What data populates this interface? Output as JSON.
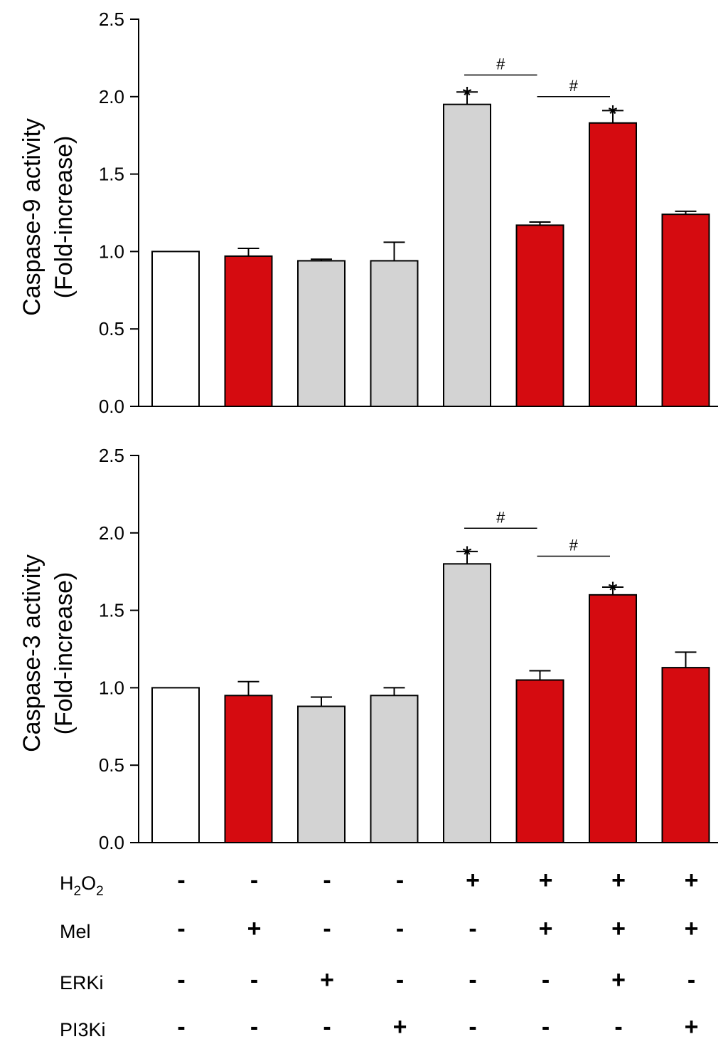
{
  "colors": {
    "ctrl": "#ffffff",
    "gray": "#d3d3d3",
    "red": "#d50b10",
    "axis": "#000000"
  },
  "chart_data": [
    {
      "type": "bar",
      "ylabel_line1": "Caspase-9 activity",
      "ylabel_line2": "(Fold-increase)",
      "ylim": [
        0,
        2.5
      ],
      "yticks": [
        0,
        0.5,
        1.0,
        1.5,
        2.0,
        2.5
      ],
      "ytick_labels": [
        "0.0",
        "0.5",
        "1.0",
        "1.5",
        "2.0",
        "2.5"
      ],
      "values": [
        1.0,
        0.97,
        0.94,
        0.94,
        1.95,
        1.17,
        1.83,
        1.24
      ],
      "errors": [
        0.0,
        0.05,
        0.01,
        0.12,
        0.08,
        0.02,
        0.08,
        0.02
      ],
      "bar_colors": [
        "ctrl",
        "red",
        "gray",
        "gray",
        "gray",
        "red",
        "red",
        "red"
      ],
      "stars": [
        {
          "bar": 4,
          "text": "*"
        },
        {
          "bar": 6,
          "text": "*"
        }
      ],
      "brackets": [
        {
          "from": 4,
          "to": 5,
          "level": 2.14,
          "text": "#"
        },
        {
          "from": 5,
          "to": 6,
          "level": 2.0,
          "text": "#"
        }
      ]
    },
    {
      "type": "bar",
      "ylabel_line1": "Caspase-3 activity",
      "ylabel_line2": "(Fold-increase)",
      "ylim": [
        0,
        2.5
      ],
      "yticks": [
        0,
        0.5,
        1.0,
        1.5,
        2.0,
        2.5
      ],
      "ytick_labels": [
        "0.0",
        "0.5",
        "1.0",
        "1.5",
        "2.0",
        "2.5"
      ],
      "values": [
        1.0,
        0.95,
        0.88,
        0.95,
        1.8,
        1.05,
        1.6,
        1.13
      ],
      "errors": [
        0.0,
        0.09,
        0.06,
        0.05,
        0.08,
        0.06,
        0.05,
        0.1
      ],
      "bar_colors": [
        "ctrl",
        "red",
        "gray",
        "gray",
        "gray",
        "red",
        "red",
        "red"
      ],
      "stars": [
        {
          "bar": 4,
          "text": "*"
        },
        {
          "bar": 6,
          "text": "*"
        }
      ],
      "brackets": [
        {
          "from": 4,
          "to": 5,
          "level": 2.03,
          "text": "#"
        },
        {
          "from": 5,
          "to": 6,
          "level": 1.85,
          "text": "#"
        }
      ]
    }
  ],
  "treatments": [
    {
      "label": "H",
      "sub1": "2",
      "mid": "O",
      "sub2": "2",
      "signs": [
        "-",
        "-",
        "-",
        "-",
        "+",
        "+",
        "+",
        "+"
      ]
    },
    {
      "label": "Mel",
      "signs": [
        "-",
        "+",
        "-",
        "-",
        "-",
        "+",
        "+",
        "+"
      ]
    },
    {
      "label": "ERKi",
      "signs": [
        "-",
        "-",
        "+",
        "-",
        "-",
        "-",
        "+",
        "-"
      ]
    },
    {
      "label": "PI3Ki",
      "signs": [
        "-",
        "-",
        "-",
        "+",
        "-",
        "-",
        "-",
        "+"
      ]
    }
  ]
}
